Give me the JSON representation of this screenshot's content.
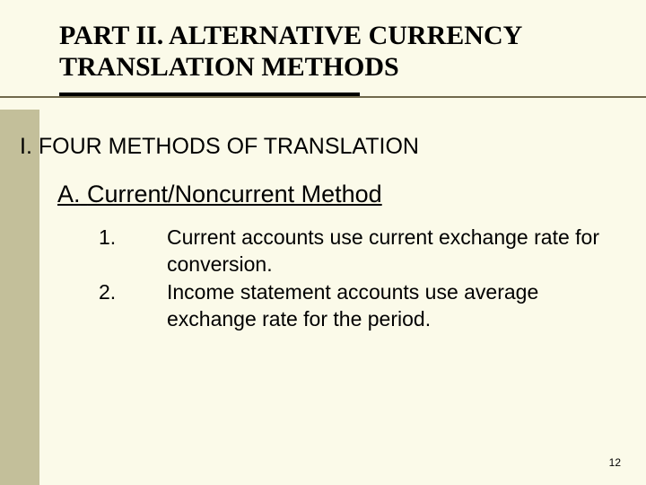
{
  "colors": {
    "background": "#fbfae9",
    "accent_bar": "#c3bf9a",
    "rule_thin": "#71694c",
    "rule_thick": "#000000",
    "text": "#000000"
  },
  "typography": {
    "title_font": "Times New Roman",
    "body_font": "Arial",
    "title_size_pt": 30,
    "heading_i_size_pt": 25,
    "heading_a_size_pt": 27,
    "list_size_pt": 23,
    "page_number_size_pt": 12
  },
  "title": "PART II. ALTERNATIVE CURRENCY TRANSLATION METHODS",
  "section_i": {
    "label": "I.",
    "text": "FOUR METHODS OF TRANSLATION"
  },
  "section_a": {
    "label": "A.",
    "text": "Current/Noncurrent Method"
  },
  "items": [
    {
      "num": "1.",
      "text": "Current accounts use current exchange rate for conversion."
    },
    {
      "num": "2.",
      "text": "Income statement accounts use average exchange rate for the period."
    }
  ],
  "page_number": "12"
}
